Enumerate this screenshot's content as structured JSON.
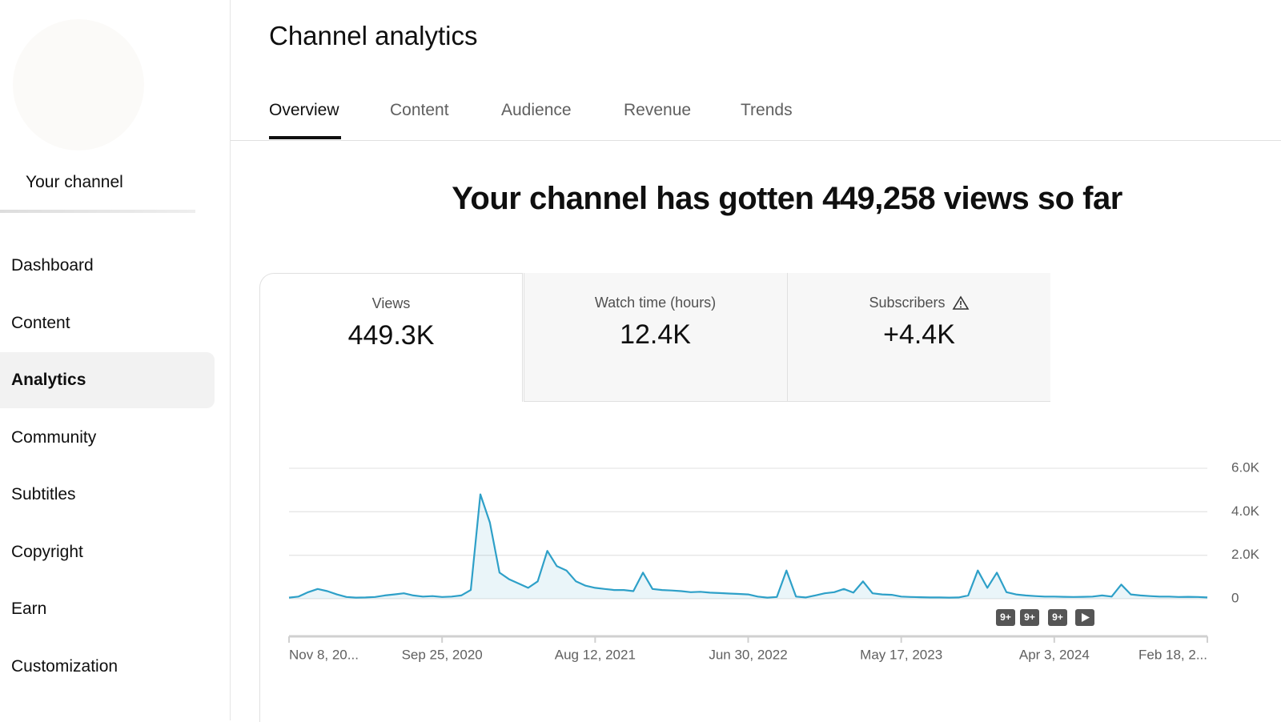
{
  "sidebar": {
    "channel_label": "Your channel",
    "nav": [
      "Dashboard",
      "Content",
      "Analytics",
      "Community",
      "Subtitles",
      "Copyright",
      "Earn",
      "Customization"
    ]
  },
  "header": {
    "title": "Channel analytics",
    "tabs": [
      "Overview",
      "Content",
      "Audience",
      "Revenue",
      "Trends"
    ]
  },
  "headline": "Your channel has gotten 449,258 views so far",
  "metrics": [
    {
      "label": "Views",
      "value": "449.3K"
    },
    {
      "label": "Watch time (hours)",
      "value": "12.4K"
    },
    {
      "label": "Subscribers",
      "value": "+4.4K"
    }
  ],
  "annotations": [
    "9+",
    "9+",
    "9+"
  ],
  "chart_data": {
    "type": "line",
    "color": "#2ea0c8",
    "grid": true,
    "categories": [
      "Nov 8, 20...",
      null,
      null,
      null,
      null,
      null,
      null,
      null,
      null,
      null,
      null,
      null,
      null,
      null,
      null,
      null,
      "Sep 25, 2020",
      null,
      null,
      null,
      null,
      null,
      null,
      null,
      null,
      null,
      null,
      null,
      null,
      null,
      null,
      null,
      "Aug 12, 2021",
      null,
      null,
      null,
      null,
      null,
      null,
      null,
      null,
      null,
      null,
      null,
      null,
      null,
      null,
      null,
      "Jun 30, 2022",
      null,
      null,
      null,
      null,
      null,
      null,
      null,
      null,
      null,
      null,
      null,
      null,
      null,
      null,
      null,
      "May 17, 2023",
      null,
      null,
      null,
      null,
      null,
      null,
      null,
      null,
      null,
      null,
      null,
      null,
      null,
      null,
      null,
      "Apr 3, 2024",
      null,
      null,
      null,
      null,
      null,
      null,
      null,
      null,
      null,
      null,
      null,
      null,
      null,
      null,
      null,
      "Feb 18, 2..."
    ],
    "values": [
      50,
      100,
      300,
      450,
      350,
      200,
      80,
      50,
      60,
      80,
      150,
      200,
      250,
      150,
      100,
      120,
      80,
      100,
      150,
      400,
      4800,
      3500,
      1200,
      900,
      700,
      500,
      800,
      2200,
      1500,
      1300,
      800,
      600,
      500,
      450,
      400,
      400,
      350,
      1200,
      450,
      400,
      380,
      350,
      300,
      320,
      280,
      260,
      240,
      220,
      200,
      100,
      50,
      80,
      1300,
      100,
      60,
      150,
      250,
      300,
      450,
      280,
      800,
      250,
      200,
      180,
      100,
      80,
      70,
      60,
      60,
      50,
      60,
      150,
      1300,
      500,
      1200,
      300,
      200,
      150,
      120,
      100,
      100,
      90,
      80,
      90,
      100,
      150,
      100,
      650,
      200,
      150,
      120,
      100,
      100,
      80,
      90,
      80,
      60
    ],
    "ylim": [
      0,
      6000
    ],
    "yticks": [
      0,
      {
        "value": 2000,
        "label": "2.0K"
      },
      {
        "value": 4000,
        "label": "4.0K"
      },
      {
        "value": 6000,
        "label": "6.0K"
      }
    ]
  }
}
